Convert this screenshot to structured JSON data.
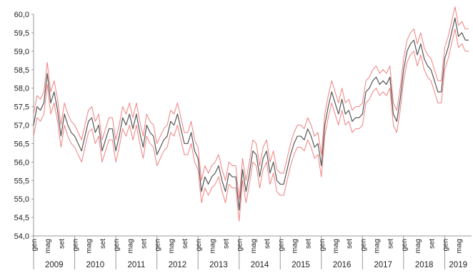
{
  "chart_data": {
    "type": "line",
    "ylim": [
      54.0,
      60.0
    ],
    "y_ticks": [
      "54,0",
      "54,5",
      "55,0",
      "55,5",
      "56,0",
      "56,5",
      "57,0",
      "57,5",
      "58,0",
      "58,5",
      "59,0",
      "59,5",
      "60,0"
    ],
    "month_labels": [
      "gen",
      "mag",
      "set"
    ],
    "last_month_labels": [
      "gen",
      "mag",
      "ott"
    ],
    "years": [
      "2009",
      "2010",
      "2011",
      "2012",
      "2013",
      "2014",
      "2015",
      "2016",
      "2017",
      "2018",
      "2019"
    ],
    "grid": false,
    "series": [
      {
        "color": "#555555",
        "values": [
          57.0,
          57.5,
          57.4,
          57.6,
          58.4,
          57.6,
          57.9,
          57.4,
          56.7,
          57.3,
          57.0,
          56.8,
          56.7,
          56.5,
          56.3,
          56.7,
          57.1,
          57.2,
          56.8,
          57.0,
          56.3,
          56.6,
          56.9,
          56.9,
          56.3,
          56.7,
          57.2,
          57.0,
          57.3,
          56.9,
          57.3,
          56.8,
          56.4,
          57.0,
          56.8,
          56.7,
          56.2,
          56.4,
          56.6,
          56.7,
          57.1,
          57.0,
          57.3,
          56.9,
          56.5,
          56.5,
          56.8,
          56.3,
          56.1,
          55.2,
          55.6,
          55.4,
          55.6,
          55.7,
          55.9,
          55.5,
          55.2,
          55.7,
          55.6,
          55.6,
          54.7,
          55.8,
          55.2,
          55.7,
          56.3,
          56.2,
          55.6,
          56.1,
          56.3,
          55.7,
          56.0,
          55.5,
          55.4,
          55.4,
          55.8,
          56.2,
          56.5,
          56.7,
          56.7,
          56.6,
          56.9,
          56.7,
          56.4,
          56.5,
          55.9,
          57.0,
          57.5,
          57.9,
          57.6,
          57.3,
          57.7,
          57.3,
          57.4,
          57.1,
          57.2,
          57.2,
          57.3,
          57.9,
          58.0,
          58.2,
          58.3,
          58.1,
          58.2,
          58.1,
          58.3,
          57.3,
          57.1,
          57.7,
          58.5,
          59.0,
          59.2,
          59.3,
          58.9,
          59.2,
          58.8,
          58.6,
          58.5,
          58.2,
          57.9,
          57.9,
          58.8,
          59.1,
          59.5,
          59.9,
          59.4,
          59.5,
          59.3,
          59.3
        ]
      },
      {
        "color": "#f08080",
        "values": [
          57.3,
          57.8,
          57.7,
          57.9,
          58.7,
          57.9,
          58.2,
          57.7,
          57.0,
          57.6,
          57.3,
          57.1,
          57.0,
          56.8,
          56.6,
          57.0,
          57.4,
          57.5,
          57.1,
          57.3,
          56.6,
          56.9,
          57.2,
          57.2,
          56.6,
          57.0,
          57.5,
          57.3,
          57.6,
          57.2,
          57.6,
          57.1,
          56.7,
          57.3,
          57.1,
          57.0,
          56.5,
          56.7,
          56.9,
          57.0,
          57.4,
          57.3,
          57.6,
          57.2,
          56.8,
          56.8,
          57.1,
          56.6,
          56.4,
          55.5,
          55.9,
          55.7,
          55.9,
          56.0,
          56.2,
          55.8,
          55.5,
          56.0,
          55.9,
          55.9,
          55.0,
          56.1,
          55.5,
          56.0,
          56.6,
          56.5,
          55.9,
          56.4,
          56.6,
          56.0,
          56.3,
          55.8,
          55.7,
          55.7,
          56.1,
          56.5,
          56.8,
          57.0,
          57.0,
          56.9,
          57.2,
          57.0,
          56.7,
          56.8,
          56.2,
          57.3,
          57.8,
          58.2,
          57.9,
          57.6,
          58.0,
          57.6,
          57.7,
          57.4,
          57.5,
          57.5,
          57.6,
          58.2,
          58.3,
          58.5,
          58.6,
          58.4,
          58.5,
          58.4,
          58.6,
          57.6,
          57.4,
          58.0,
          58.8,
          59.3,
          59.5,
          59.6,
          59.2,
          59.5,
          59.1,
          58.9,
          58.8,
          58.5,
          58.2,
          58.2,
          59.1,
          59.4,
          59.8,
          60.2,
          59.7,
          59.8,
          59.6,
          59.6
        ]
      },
      {
        "color": "#f08080",
        "values": [
          56.7,
          57.2,
          57.1,
          57.3,
          58.1,
          57.3,
          57.6,
          57.1,
          56.4,
          57.0,
          56.7,
          56.5,
          56.4,
          56.2,
          56.0,
          56.4,
          56.8,
          56.9,
          56.5,
          56.7,
          56.0,
          56.3,
          56.6,
          56.6,
          56.0,
          56.4,
          56.9,
          56.7,
          57.0,
          56.6,
          57.0,
          56.5,
          56.1,
          56.7,
          56.5,
          56.4,
          55.9,
          56.1,
          56.3,
          56.4,
          56.8,
          56.7,
          57.0,
          56.6,
          56.2,
          56.2,
          56.5,
          56.0,
          55.8,
          54.9,
          55.3,
          55.1,
          55.3,
          55.4,
          55.6,
          55.2,
          54.9,
          55.4,
          55.3,
          55.3,
          54.4,
          55.5,
          54.9,
          55.4,
          56.0,
          55.9,
          55.3,
          55.8,
          56.0,
          55.4,
          55.7,
          55.2,
          55.1,
          55.1,
          55.5,
          55.9,
          56.2,
          56.4,
          56.4,
          56.3,
          56.6,
          56.4,
          56.1,
          56.2,
          55.6,
          56.7,
          57.2,
          57.6,
          57.3,
          57.0,
          57.4,
          57.0,
          57.1,
          56.8,
          56.9,
          56.9,
          57.0,
          57.6,
          57.7,
          57.9,
          58.0,
          57.8,
          57.9,
          57.8,
          58.0,
          57.0,
          56.8,
          57.4,
          58.2,
          58.7,
          58.9,
          59.0,
          58.6,
          58.9,
          58.5,
          58.3,
          58.2,
          57.9,
          57.6,
          57.6,
          58.5,
          58.8,
          59.2,
          59.6,
          59.1,
          59.2,
          59.0,
          59.0
        ]
      }
    ]
  }
}
